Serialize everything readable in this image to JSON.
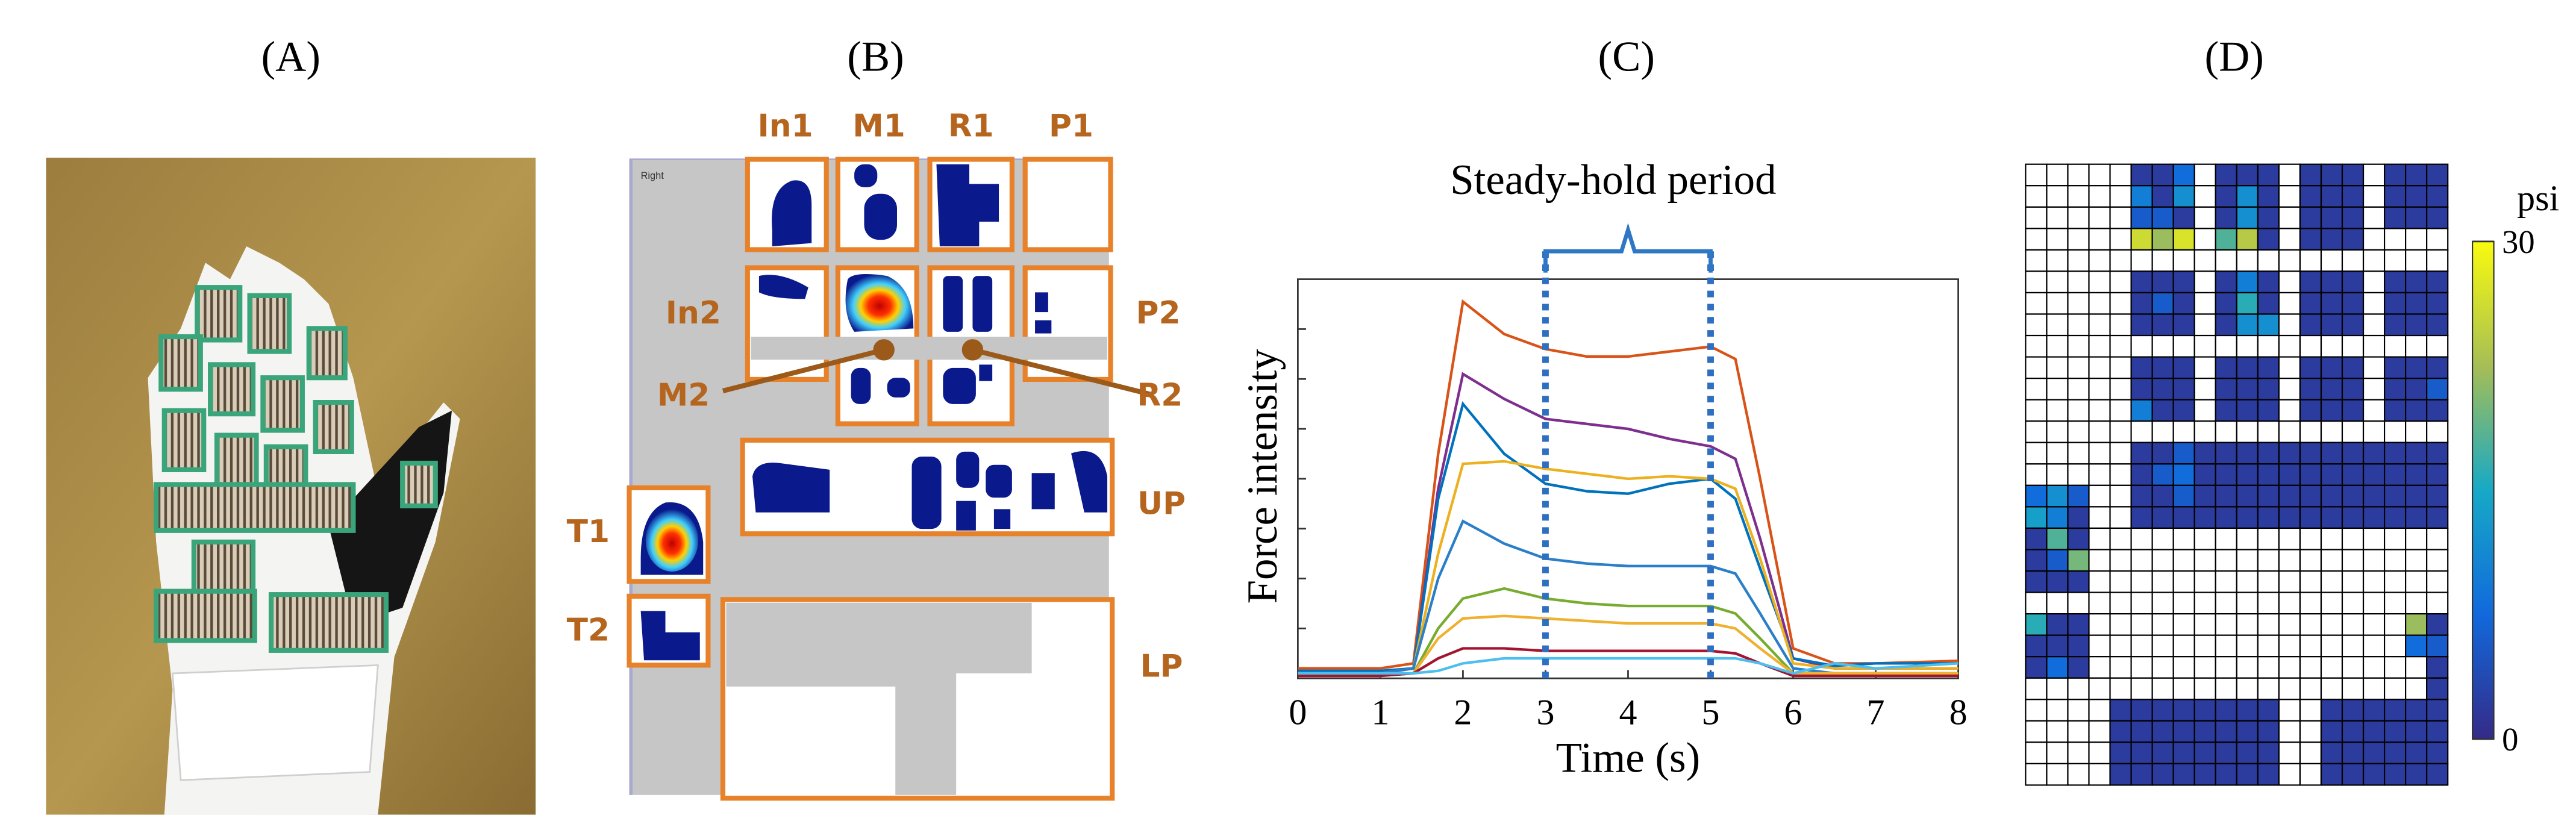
{
  "panels": {
    "a": "(A)",
    "b": "(B)",
    "c": "(C)",
    "d": "(D)"
  },
  "glove_map": {
    "caption": "Right",
    "in1": "In1",
    "m1": "M1",
    "r1": "R1",
    "p1": "P1",
    "in2": "In2",
    "p2": "P2",
    "m2": "M2",
    "r2": "R2",
    "up": "UP",
    "t1": "T1",
    "t2": "T2",
    "lp": "LP"
  },
  "chart_data": [
    {
      "type": "line",
      "annotation": "Steady-hold period",
      "annotation_span": [
        3,
        5
      ],
      "xlabel": "Time (s)",
      "ylabel": "Force intensity",
      "x": [
        0,
        1,
        1.4,
        1.7,
        2,
        2.5,
        3,
        3.5,
        4,
        4.5,
        5,
        5.3,
        5.6,
        6,
        6.5,
        7,
        8
      ],
      "xlim": [
        0,
        8
      ],
      "xticks": [
        0,
        1,
        2,
        3,
        4,
        5,
        6,
        7,
        8
      ],
      "ylim": [
        0,
        8
      ],
      "yticks": [
        1,
        2,
        3,
        4,
        5,
        6,
        7
      ],
      "grid": false,
      "series": [
        {
          "color": "#d95319",
          "values": [
            0.2,
            0.2,
            0.3,
            4.5,
            7.55,
            6.9,
            6.6,
            6.45,
            6.45,
            6.55,
            6.65,
            6.4,
            4.0,
            0.6,
            0.3,
            0.3,
            0.35
          ]
        },
        {
          "color": "#7e2f8e",
          "values": [
            0.1,
            0.1,
            0.2,
            3.8,
            6.1,
            5.6,
            5.2,
            5.1,
            5.0,
            4.8,
            4.65,
            4.4,
            2.8,
            0.4,
            0.2,
            0.2,
            0.2
          ]
        },
        {
          "color": "#0072bd",
          "values": [
            0.15,
            0.15,
            0.2,
            3.6,
            5.5,
            4.5,
            3.9,
            3.75,
            3.7,
            3.9,
            4.0,
            3.6,
            2.2,
            0.4,
            0.25,
            0.3,
            0.3
          ]
        },
        {
          "color": "#edb120",
          "values": [
            0.1,
            0.1,
            0.2,
            2.5,
            4.3,
            4.35,
            4.2,
            4.1,
            4.0,
            4.05,
            4.0,
            3.8,
            2.4,
            0.3,
            0.2,
            0.2,
            0.2
          ]
        },
        {
          "color": "#2a7fc8",
          "values": [
            0.1,
            0.1,
            0.2,
            2.0,
            3.15,
            2.7,
            2.4,
            2.3,
            2.25,
            2.25,
            2.25,
            2.1,
            1.3,
            0.2,
            0.1,
            0.1,
            0.1
          ]
        },
        {
          "color": "#77ac30",
          "values": [
            0.05,
            0.05,
            0.1,
            1.0,
            1.6,
            1.8,
            1.6,
            1.5,
            1.45,
            1.45,
            1.45,
            1.3,
            0.8,
            0.1,
            0.1,
            0.1,
            0.1
          ]
        },
        {
          "color": "#f0b030",
          "values": [
            0.05,
            0.05,
            0.1,
            0.8,
            1.2,
            1.25,
            1.2,
            1.15,
            1.1,
            1.1,
            1.1,
            1.0,
            0.6,
            0.1,
            0.1,
            0.1,
            0.1
          ]
        },
        {
          "color": "#a2142f",
          "values": [
            0.05,
            0.05,
            0.1,
            0.4,
            0.6,
            0.6,
            0.55,
            0.55,
            0.55,
            0.55,
            0.55,
            0.5,
            0.3,
            0.05,
            0.05,
            0.05,
            0.05
          ]
        },
        {
          "color": "#4dbeee",
          "values": [
            0.1,
            0.1,
            0.1,
            0.15,
            0.3,
            0.4,
            0.4,
            0.4,
            0.4,
            0.4,
            0.4,
            0.4,
            0.3,
            0.1,
            0.3,
            0.2,
            0.3
          ]
        }
      ]
    },
    {
      "type": "heatmap",
      "colorbar_label": "psi",
      "colormap": "parula",
      "zlim": [
        0,
        30
      ],
      "zticks": [
        0,
        30
      ],
      "z": [
        [
          null,
          null,
          null,
          null,
          null,
          2,
          2,
          8,
          null,
          2,
          2,
          2,
          null,
          2,
          2,
          2,
          null,
          2,
          2,
          2
        ],
        [
          null,
          null,
          null,
          null,
          null,
          10,
          2,
          12,
          null,
          2,
          12,
          2,
          null,
          2,
          2,
          2,
          null,
          2,
          2,
          2
        ],
        [
          null,
          null,
          null,
          null,
          null,
          6,
          6,
          2,
          null,
          2,
          12,
          2,
          null,
          2,
          2,
          2,
          null,
          2,
          2,
          2
        ],
        [
          null,
          null,
          null,
          null,
          null,
          26,
          22,
          27,
          null,
          18,
          24,
          2,
          null,
          2,
          2,
          2,
          null,
          null,
          null,
          null
        ],
        [
          null,
          null,
          null,
          null,
          null,
          null,
          null,
          null,
          null,
          null,
          null,
          null,
          null,
          null,
          null,
          null,
          null,
          null,
          null,
          null
        ],
        [
          null,
          null,
          null,
          null,
          null,
          2,
          2,
          2,
          null,
          2,
          10,
          2,
          null,
          2,
          2,
          2,
          null,
          2,
          2,
          2
        ],
        [
          null,
          null,
          null,
          null,
          null,
          2,
          6,
          2,
          null,
          2,
          16,
          2,
          null,
          2,
          2,
          2,
          null,
          2,
          2,
          2
        ],
        [
          null,
          null,
          null,
          null,
          null,
          2,
          2,
          2,
          null,
          2,
          12,
          12,
          null,
          2,
          2,
          2,
          null,
          2,
          2,
          2
        ],
        [
          null,
          null,
          null,
          null,
          null,
          null,
          null,
          null,
          null,
          null,
          null,
          null,
          null,
          null,
          null,
          null,
          null,
          null,
          null,
          null
        ],
        [
          null,
          null,
          null,
          null,
          null,
          2,
          2,
          2,
          null,
          2,
          2,
          2,
          null,
          2,
          2,
          2,
          null,
          2,
          2,
          2
        ],
        [
          null,
          null,
          null,
          null,
          null,
          2,
          2,
          2,
          null,
          2,
          2,
          2,
          null,
          2,
          2,
          2,
          null,
          2,
          2,
          6
        ],
        [
          null,
          null,
          null,
          null,
          null,
          10,
          2,
          2,
          null,
          2,
          2,
          2,
          null,
          2,
          2,
          2,
          null,
          2,
          2,
          2
        ],
        [
          null,
          null,
          null,
          null,
          null,
          null,
          null,
          null,
          null,
          null,
          null,
          null,
          null,
          null,
          null,
          null,
          null,
          null,
          null,
          null
        ],
        [
          null,
          null,
          null,
          null,
          null,
          2,
          2,
          6,
          2,
          2,
          2,
          2,
          2,
          2,
          2,
          2,
          2,
          2,
          2,
          2
        ],
        [
          null,
          null,
          null,
          null,
          null,
          2,
          6,
          8,
          2,
          2,
          2,
          2,
          2,
          2,
          2,
          2,
          2,
          2,
          2,
          2
        ],
        [
          8,
          12,
          6,
          null,
          null,
          2,
          2,
          6,
          2,
          2,
          2,
          2,
          2,
          2,
          2,
          2,
          2,
          2,
          2,
          2
        ],
        [
          14,
          10,
          2,
          null,
          null,
          2,
          2,
          2,
          2,
          2,
          2,
          2,
          2,
          2,
          2,
          2,
          2,
          2,
          2,
          2
        ],
        [
          2,
          18,
          2,
          null,
          null,
          null,
          null,
          null,
          null,
          null,
          null,
          null,
          null,
          null,
          null,
          null,
          null,
          null,
          null,
          null
        ],
        [
          2,
          6,
          20,
          null,
          null,
          null,
          null,
          null,
          null,
          null,
          null,
          null,
          null,
          null,
          null,
          null,
          null,
          null,
          null,
          null
        ],
        [
          2,
          2,
          2,
          null,
          null,
          null,
          null,
          null,
          null,
          null,
          null,
          null,
          null,
          null,
          null,
          null,
          null,
          null,
          null,
          null
        ],
        [
          null,
          null,
          null,
          null,
          null,
          null,
          null,
          null,
          null,
          null,
          null,
          null,
          null,
          null,
          null,
          null,
          null,
          null,
          null,
          null
        ],
        [
          16,
          2,
          2,
          null,
          null,
          null,
          null,
          null,
          null,
          null,
          null,
          null,
          null,
          null,
          null,
          null,
          null,
          null,
          22,
          2
        ],
        [
          2,
          2,
          2,
          null,
          null,
          null,
          null,
          null,
          null,
          null,
          null,
          null,
          null,
          null,
          null,
          null,
          null,
          null,
          8,
          6
        ],
        [
          2,
          8,
          2,
          null,
          null,
          null,
          null,
          null,
          null,
          null,
          null,
          null,
          null,
          null,
          null,
          null,
          null,
          null,
          null,
          2
        ],
        [
          null,
          null,
          null,
          null,
          null,
          null,
          null,
          null,
          null,
          null,
          null,
          null,
          null,
          null,
          null,
          null,
          null,
          null,
          null,
          2
        ],
        [
          null,
          null,
          null,
          null,
          2,
          2,
          2,
          2,
          2,
          2,
          2,
          2,
          null,
          null,
          2,
          2,
          2,
          2,
          2,
          2
        ],
        [
          null,
          null,
          null,
          null,
          2,
          2,
          2,
          2,
          2,
          2,
          2,
          2,
          null,
          null,
          2,
          2,
          2,
          2,
          2,
          2
        ],
        [
          null,
          null,
          null,
          null,
          2,
          2,
          2,
          2,
          2,
          2,
          2,
          2,
          null,
          null,
          2,
          2,
          2,
          2,
          2,
          2
        ],
        [
          null,
          null,
          null,
          null,
          2,
          2,
          2,
          2,
          2,
          2,
          2,
          2,
          null,
          null,
          2,
          2,
          2,
          2,
          2,
          2
        ]
      ]
    }
  ]
}
